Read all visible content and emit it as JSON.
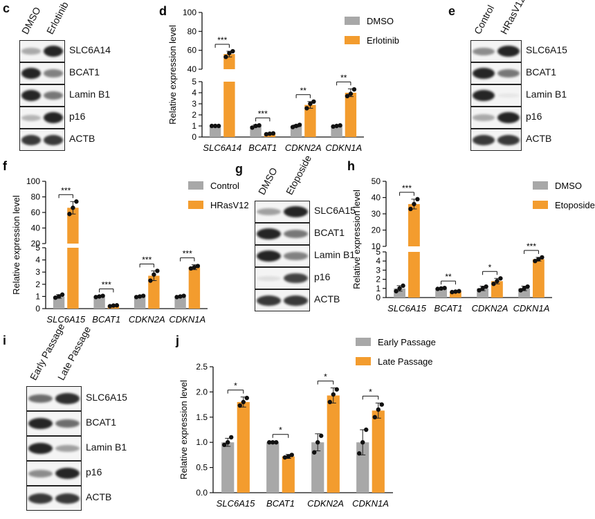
{
  "colors": {
    "control": "#a8a8a8",
    "treatment": "#f39c2e",
    "dot": "#111111",
    "band": "#1a1a1a"
  },
  "blots": [
    {
      "id": "c",
      "label": "c",
      "lanes": [
        "DMSO",
        "Erlotinib"
      ],
      "rows": [
        {
          "name": "SLC6A14",
          "i": [
            0.35,
            1.0
          ]
        },
        {
          "name": "BCAT1",
          "i": [
            1.0,
            0.55
          ]
        },
        {
          "name": "Lamin B1",
          "i": [
            1.0,
            0.6
          ]
        },
        {
          "name": "p16",
          "i": [
            0.3,
            1.0
          ]
        },
        {
          "name": "ACTB",
          "i": [
            0.9,
            0.9
          ]
        }
      ]
    },
    {
      "id": "e",
      "label": "e",
      "lanes": [
        "Control",
        "HRasV12"
      ],
      "rows": [
        {
          "name": "SLC6A15",
          "i": [
            0.5,
            1.0
          ]
        },
        {
          "name": "BCAT1",
          "i": [
            1.0,
            0.6
          ]
        },
        {
          "name": "Lamin B1",
          "i": [
            1.0,
            0.05
          ]
        },
        {
          "name": "p16",
          "i": [
            0.35,
            1.0
          ]
        },
        {
          "name": "ACTB",
          "i": [
            0.9,
            0.9
          ]
        }
      ]
    },
    {
      "id": "g",
      "label": "g",
      "lanes": [
        "DMSO",
        "Etoposide"
      ],
      "rows": [
        {
          "name": "SLC6A15",
          "i": [
            0.4,
            1.0
          ]
        },
        {
          "name": "BCAT1",
          "i": [
            1.0,
            0.6
          ]
        },
        {
          "name": "Lamin B1",
          "i": [
            1.0,
            0.55
          ]
        },
        {
          "name": "p16",
          "i": [
            0.1,
            0.85
          ]
        },
        {
          "name": "ACTB",
          "i": [
            0.9,
            0.9
          ]
        }
      ]
    },
    {
      "id": "i",
      "label": "i",
      "lanes": [
        "Early Passage",
        "Late Passage"
      ],
      "rows": [
        {
          "name": "SLC6A15",
          "i": [
            0.65,
            0.95
          ]
        },
        {
          "name": "BCAT1",
          "i": [
            1.0,
            0.65
          ]
        },
        {
          "name": "Lamin B1",
          "i": [
            1.0,
            0.4
          ]
        },
        {
          "name": "p16",
          "i": [
            0.5,
            1.0
          ]
        },
        {
          "name": "ACTB",
          "i": [
            0.9,
            0.9
          ]
        }
      ]
    }
  ],
  "chart_data": [
    {
      "id": "d",
      "label": "d",
      "type": "bar",
      "ylabel": "Relative expression level",
      "categories": [
        "SLC6A14",
        "BCAT1",
        "CDKN2A",
        "CDKN1A"
      ],
      "series": [
        {
          "name": "DMSO",
          "values": [
            1.0,
            1.0,
            1.0,
            1.0
          ]
        },
        {
          "name": "Erlotinib",
          "values": [
            56,
            0.3,
            2.9,
            4.0
          ]
        }
      ],
      "points": [
        [
          [
            1.0,
            1.0,
            1.0
          ],
          [
            53,
            57,
            59
          ]
        ],
        [
          [
            0.85,
            1.0,
            1.05
          ],
          [
            0.25,
            0.3,
            0.33
          ]
        ],
        [
          [
            0.9,
            1.0,
            1.1
          ],
          [
            2.6,
            3.0,
            3.2
          ]
        ],
        [
          [
            0.95,
            1.0,
            1.05
          ],
          [
            3.7,
            3.9,
            4.3
          ]
        ]
      ],
      "errors": [
        [
          0.05,
          3
        ],
        [
          0.1,
          0.04
        ],
        [
          0.1,
          0.3
        ],
        [
          0.06,
          0.35
        ]
      ],
      "sig": [
        "***",
        "***",
        "**",
        "**"
      ],
      "yticks": [
        "0",
        "1",
        "2",
        "3",
        "4",
        "5",
        "40",
        "60",
        "80",
        "100"
      ],
      "legend_position": "top-right",
      "broken_axis": {
        "lower": [
          0,
          5
        ],
        "upper": [
          40,
          100
        ]
      }
    },
    {
      "id": "f",
      "label": "f",
      "type": "bar",
      "ylabel": "Relative expression level",
      "categories": [
        "SLC6A15",
        "BCAT1",
        "CDKN2A",
        "CDKN1A"
      ],
      "series": [
        {
          "name": "Control",
          "values": [
            1.0,
            1.0,
            1.0,
            1.0
          ]
        },
        {
          "name": "HRasV12",
          "values": [
            66,
            0.25,
            2.7,
            3.4
          ]
        }
      ],
      "points": [
        [
          [
            0.9,
            1.0,
            1.15
          ],
          [
            58,
            66,
            74
          ]
        ],
        [
          [
            0.95,
            1.0,
            1.05
          ],
          [
            0.2,
            0.25,
            0.27
          ]
        ],
        [
          [
            0.95,
            1.0,
            1.05
          ],
          [
            2.3,
            2.8,
            3.1
          ]
        ],
        [
          [
            0.95,
            1.0,
            1.05
          ],
          [
            3.3,
            3.4,
            3.5
          ]
        ]
      ],
      "errors": [
        [
          0.15,
          8
        ],
        [
          0.05,
          0.05
        ],
        [
          0.05,
          0.4
        ],
        [
          0.05,
          0.2
        ]
      ],
      "sig": [
        "***",
        "***",
        "***",
        "***"
      ],
      "yticks": [
        "0",
        "1",
        "2",
        "3",
        "4",
        "5",
        "20",
        "40",
        "60",
        "80",
        "100"
      ],
      "legend_position": "top-right",
      "broken_axis": {
        "lower": [
          0,
          5
        ],
        "upper": [
          20,
          100
        ]
      }
    },
    {
      "id": "h",
      "label": "h",
      "type": "bar",
      "ylabel": "Relative expression level",
      "categories": [
        "SLC6A15",
        "BCAT1",
        "CDKN2A",
        "CDKN1A"
      ],
      "series": [
        {
          "name": "DMSO",
          "values": [
            1.0,
            1.0,
            1.0,
            1.0
          ]
        },
        {
          "name": "Etoposide",
          "values": [
            36,
            0.65,
            1.8,
            4.2
          ]
        }
      ],
      "points": [
        [
          [
            0.7,
            1.0,
            1.3
          ],
          [
            33,
            36,
            39
          ]
        ],
        [
          [
            0.95,
            1.0,
            1.05
          ],
          [
            0.6,
            0.65,
            0.7
          ]
        ],
        [
          [
            0.8,
            1.0,
            1.2
          ],
          [
            1.5,
            1.8,
            2.1
          ]
        ],
        [
          [
            0.8,
            1.0,
            1.2
          ],
          [
            4.0,
            4.2,
            4.4
          ]
        ]
      ],
      "errors": [
        [
          0.3,
          3
        ],
        [
          0.05,
          0.05
        ],
        [
          0.25,
          0.3
        ],
        [
          0.25,
          0.2
        ]
      ],
      "sig": [
        "***",
        "**",
        "*",
        "***"
      ],
      "yticks": [
        "0",
        "1",
        "2",
        "3",
        "4",
        "5",
        "10",
        "20",
        "30",
        "40",
        "50"
      ],
      "legend_position": "top-right",
      "broken_axis": {
        "lower": [
          0,
          5
        ],
        "upper": [
          10,
          50
        ]
      }
    },
    {
      "id": "j",
      "label": "j",
      "type": "bar",
      "ylabel": "Relative expression level",
      "categories": [
        "SLC6A15",
        "BCAT1",
        "CDKN2A",
        "CDKN1A"
      ],
      "series": [
        {
          "name": "Early Passage",
          "values": [
            1.0,
            1.0,
            1.0,
            1.0
          ]
        },
        {
          "name": "Late Passage",
          "values": [
            1.8,
            0.72,
            1.93,
            1.63
          ]
        }
      ],
      "points": [
        [
          [
            0.95,
            1.0,
            1.1
          ],
          [
            1.73,
            1.8,
            1.88
          ]
        ],
        [
          [
            1.0,
            1.0,
            1.0
          ],
          [
            0.7,
            0.72,
            0.75
          ]
        ],
        [
          [
            0.8,
            1.0,
            1.13
          ],
          [
            1.8,
            1.95,
            2.05
          ]
        ],
        [
          [
            0.78,
            1.0,
            1.25
          ],
          [
            1.5,
            1.65,
            1.75
          ]
        ]
      ],
      "errors": [
        [
          0.08,
          0.1
        ],
        [
          0.02,
          0.04
        ],
        [
          0.17,
          0.15
        ],
        [
          0.25,
          0.15
        ]
      ],
      "sig": [
        "*",
        "*",
        "*",
        "*"
      ],
      "yticks": [
        "0.0",
        "0.5",
        "1.0",
        "1.5",
        "2.0",
        "2.5"
      ],
      "ylim": [
        0,
        2.5
      ],
      "legend_position": "top-right"
    }
  ]
}
